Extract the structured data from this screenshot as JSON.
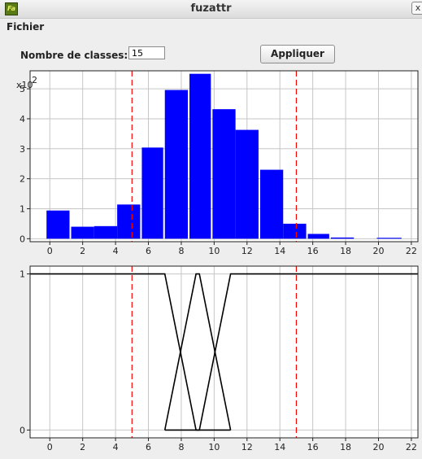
{
  "window": {
    "title": "fuzattr",
    "icon_text": "Fa",
    "close_glyph": "x"
  },
  "menu": {
    "items": [
      "Fichier"
    ]
  },
  "controls": {
    "classes_label": "Nombre de classes:",
    "classes_value": "15",
    "apply_label": "Appliquer"
  },
  "chart_data": [
    {
      "type": "bar",
      "title": "",
      "xlabel": "",
      "ylabel": "",
      "y_multiplier": "x10",
      "y_multiplier_exp": "2",
      "x_ticks": [
        0,
        2,
        4,
        6,
        8,
        10,
        12,
        14,
        16,
        18,
        20,
        22
      ],
      "y_ticks": [
        0,
        1,
        2,
        3,
        4,
        5
      ],
      "xlim": [
        -1.2,
        22.4
      ],
      "ylim": [
        -0.1,
        5.6
      ],
      "bar_color": "#0000ff",
      "grid": true,
      "bins": [
        {
          "x0": -0.2,
          "x1": 1.2,
          "value": 0.94
        },
        {
          "x0": 1.3,
          "x1": 2.7,
          "value": 0.4
        },
        {
          "x0": 2.7,
          "x1": 4.1,
          "value": 0.42
        },
        {
          "x0": 4.1,
          "x1": 5.5,
          "value": 1.14
        },
        {
          "x0": 5.6,
          "x1": 6.9,
          "value": 3.04
        },
        {
          "x0": 7.0,
          "x1": 8.4,
          "value": 4.96
        },
        {
          "x0": 8.5,
          "x1": 9.8,
          "value": 5.5
        },
        {
          "x0": 9.9,
          "x1": 11.3,
          "value": 4.32
        },
        {
          "x0": 11.3,
          "x1": 12.7,
          "value": 3.63
        },
        {
          "x0": 12.8,
          "x1": 14.2,
          "value": 2.3
        },
        {
          "x0": 14.2,
          "x1": 15.6,
          "value": 0.5
        },
        {
          "x0": 15.7,
          "x1": 17.0,
          "value": 0.16
        },
        {
          "x0": 17.1,
          "x1": 18.5,
          "value": 0.04
        },
        {
          "x0": 18.6,
          "x1": 19.9,
          "value": 0.0
        },
        {
          "x0": 19.9,
          "x1": 21.4,
          "value": 0.03
        }
      ],
      "thresholds": [
        5,
        15
      ],
      "threshold_color": "#ff0000"
    },
    {
      "type": "line",
      "title": "",
      "xlabel": "",
      "ylabel": "",
      "x_ticks": [
        0,
        2,
        4,
        6,
        8,
        10,
        12,
        14,
        16,
        18,
        20,
        22
      ],
      "y_ticks": [
        0,
        1
      ],
      "xlim": [
        -1.2,
        22.4
      ],
      "ylim": [
        -0.05,
        1.05
      ],
      "line_color": "#000000",
      "grid": true,
      "series": [
        {
          "x": [
            -1.2,
            7,
            8.9,
            11
          ],
          "y": [
            1,
            1,
            0,
            0
          ]
        },
        {
          "x": [
            7,
            8.9,
            9.1,
            11
          ],
          "y": [
            0,
            1,
            1,
            0
          ]
        },
        {
          "x": [
            7,
            9.1,
            11,
            22.4
          ],
          "y": [
            0,
            0,
            1,
            1
          ]
        }
      ],
      "thresholds": [
        5,
        15
      ],
      "threshold_color": "#ff0000"
    }
  ]
}
